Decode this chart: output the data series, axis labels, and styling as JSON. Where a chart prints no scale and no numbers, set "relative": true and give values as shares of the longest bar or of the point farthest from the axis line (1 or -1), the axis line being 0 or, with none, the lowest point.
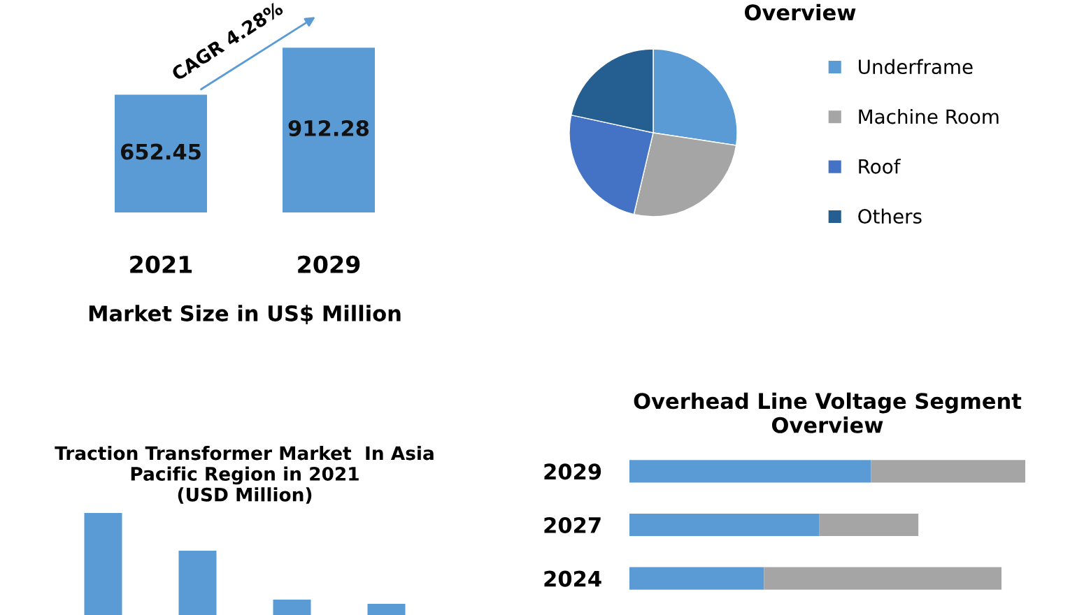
{
  "chart_data": [
    {
      "type": "bar",
      "categories": [
        "2021",
        "2029"
      ],
      "values": [
        652.45,
        912.28
      ],
      "color": "#5b9bd5",
      "data_labels": true,
      "xlabel": "Market Size in US$ Million",
      "annotations": [
        "CAGR 4.28%"
      ]
    },
    {
      "type": "pie",
      "title": "Overview",
      "categories": [
        "Underframe",
        "Machine Room",
        "Roof",
        "Others"
      ],
      "values": [
        27.4,
        26.3,
        24.7,
        21.6
      ],
      "colors": [
        "#5b9bd5",
        "#a5a5a5",
        "#4472c4",
        "#255e91"
      ],
      "legend": "right"
    },
    {
      "type": "bar",
      "title": "Traction Transformer Market  In Asia\nPacific Region in 2021\n(USD Million)",
      "categories": [
        null,
        null,
        null,
        null
      ],
      "values": [
        1,
        0.63,
        0.15,
        0.11
      ],
      "color": "#5b9bd5",
      "relative": true
    },
    {
      "type": "bar",
      "orientation": "horizontal",
      "stacked": true,
      "relative": true,
      "title": "Overhead Line Voltage Segment\nOverview",
      "categories": [
        "2029",
        "2027",
        "2024"
      ],
      "series": [
        {
          "color": "#5b9bd5",
          "values": [
            0.61,
            0.48,
            0.34
          ]
        },
        {
          "color": "#a5a5a5",
          "values": [
            0.39,
            0.25,
            0.6
          ]
        }
      ]
    }
  ]
}
